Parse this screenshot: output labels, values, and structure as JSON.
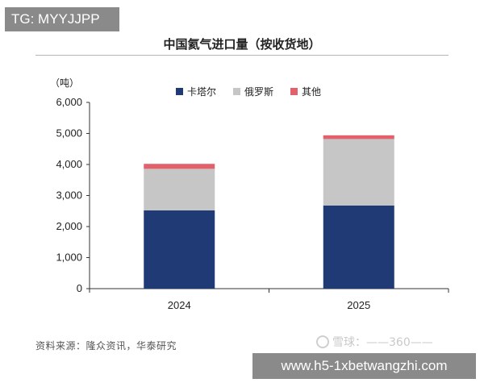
{
  "watermark_tag": "TG: MYYJJPP",
  "unit_label": "（吨）",
  "source_text": "资料来源：隆众资讯，华泰研究",
  "xueqiu_mark": "雪球：——360——",
  "url_banner": "www.h5-1xbetwangzhi.com",
  "chart_data": {
    "type": "bar",
    "stacked": true,
    "title": "中国氦气进口量（按收货地）",
    "xlabel": "",
    "ylabel": "（吨）",
    "categories": [
      "2024",
      "2025"
    ],
    "series": [
      {
        "name": "卡塔尔",
        "values": [
          2520,
          2680
        ],
        "color": "#1f3a75"
      },
      {
        "name": "俄罗斯",
        "values": [
          1340,
          2140
        ],
        "color": "#c6c6c6"
      },
      {
        "name": "其他",
        "values": [
          160,
          120
        ],
        "color": "#e2616a"
      }
    ],
    "ylim": [
      0,
      6000
    ],
    "yticks": [
      "0",
      "1,000",
      "2,000",
      "3,000",
      "4,000",
      "5,000",
      "6,000"
    ],
    "grid": false,
    "legend": "top-center"
  }
}
